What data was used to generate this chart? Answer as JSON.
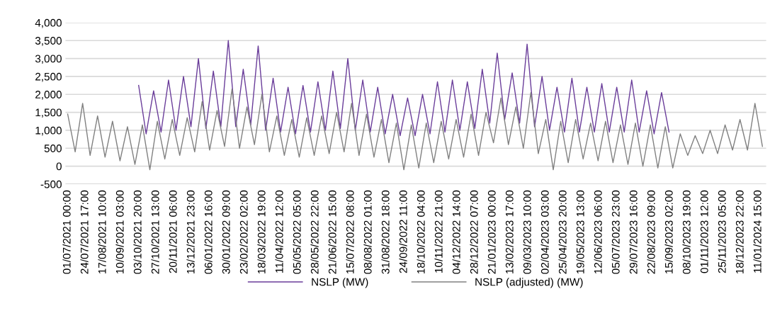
{
  "chart_data": {
    "type": "line",
    "legend": "bottom",
    "grid": "y",
    "marker": "none",
    "line_style": "solid",
    "xlim": [
      "2021-06-28",
      "2024-01-22"
    ],
    "ylim": [
      -500,
      4000
    ],
    "yticks": [
      -500,
      0,
      500,
      {
        "value": 1000,
        "label": "1,000"
      },
      {
        "value": 1500,
        "label": "1,500"
      },
      {
        "value": 2000,
        "label": "2,000"
      },
      {
        "value": 2500,
        "label": "2,500"
      },
      {
        "value": 3000,
        "label": "3,000"
      },
      {
        "value": 3500,
        "label": "3,500"
      },
      {
        "value": 4000,
        "label": "4,000"
      }
    ],
    "xticks": [
      {
        "value": "2021-07-01T00:00",
        "label": "01/07/2021 00:00"
      },
      {
        "value": "2021-07-24T17:00",
        "label": "24/07/2021 17:00"
      },
      {
        "value": "2021-08-17T10:00",
        "label": "17/08/2021 10:00"
      },
      {
        "value": "2021-09-10T03:00",
        "label": "10/09/2021 03:00"
      },
      {
        "value": "2021-10-03T20:00",
        "label": "03/10/2021 20:00"
      },
      {
        "value": "2021-10-27T13:00",
        "label": "27/10/2021 13:00"
      },
      {
        "value": "2021-11-20T06:00",
        "label": "20/11/2021 06:00"
      },
      {
        "value": "2021-12-13T23:00",
        "label": "13/12/2021 23:00"
      },
      {
        "value": "2022-01-06T16:00",
        "label": "06/01/2022 16:00"
      },
      {
        "value": "2022-01-30T09:00",
        "label": "30/01/2022 09:00"
      },
      {
        "value": "2022-02-23T02:00",
        "label": "23/02/2022 02:00"
      },
      {
        "value": "2022-03-18T19:00",
        "label": "18/03/2022 19:00"
      },
      {
        "value": "2022-04-11T12:00",
        "label": "11/04/2022 12:00"
      },
      {
        "value": "2022-05-05T05:00",
        "label": "05/05/2022 05:00"
      },
      {
        "value": "2022-05-28T22:00",
        "label": "28/05/2022 22:00"
      },
      {
        "value": "2022-06-21T15:00",
        "label": "21/06/2022 15:00"
      },
      {
        "value": "2022-07-15T08:00",
        "label": "15/07/2022 08:00"
      },
      {
        "value": "2022-08-08T01:00",
        "label": "08/08/2022 01:00"
      },
      {
        "value": "2022-08-31T18:00",
        "label": "31/08/2022 18:00"
      },
      {
        "value": "2022-09-24T11:00",
        "label": "24/09/2022 11:00"
      },
      {
        "value": "2022-10-18T04:00",
        "label": "18/10/2022 04:00"
      },
      {
        "value": "2022-11-10T21:00",
        "label": "10/11/2022 21:00"
      },
      {
        "value": "2022-12-04T14:00",
        "label": "04/12/2022 14:00"
      },
      {
        "value": "2022-12-28T07:00",
        "label": "28/12/2022 07:00"
      },
      {
        "value": "2023-01-21T00:00",
        "label": "21/01/2023 00:00"
      },
      {
        "value": "2023-02-13T17:00",
        "label": "13/02/2023 17:00"
      },
      {
        "value": "2023-03-09T10:00",
        "label": "09/03/2023 10:00"
      },
      {
        "value": "2023-04-02T03:00",
        "label": "02/04/2023 03:00"
      },
      {
        "value": "2023-04-25T20:00",
        "label": "25/04/2023 20:00"
      },
      {
        "value": "2023-05-19T13:00",
        "label": "19/05/2023 13:00"
      },
      {
        "value": "2023-06-12T06:00",
        "label": "12/06/2023 06:00"
      },
      {
        "value": "2023-07-05T23:00",
        "label": "05/07/2023 23:00"
      },
      {
        "value": "2023-07-29T16:00",
        "label": "29/07/2023 16:00"
      },
      {
        "value": "2023-08-22T09:00",
        "label": "22/08/2023 09:00"
      },
      {
        "value": "2023-09-15T02:00",
        "label": "15/09/2023 02:00"
      },
      {
        "value": "2023-10-08T19:00",
        "label": "08/10/2023 19:00"
      },
      {
        "value": "2023-11-01T12:00",
        "label": "01/11/2023 12:00"
      },
      {
        "value": "2023-11-25T05:00",
        "label": "25/11/2023 05:00"
      },
      {
        "value": "2023-12-18T22:00",
        "label": "18/12/2023 22:00"
      },
      {
        "value": "2024-01-11T15:00",
        "label": "11/01/2024 15:00"
      }
    ],
    "series": [
      {
        "name": "NSLP (MW)",
        "color": "#6a3d9a",
        "x": [
          "2021-10-04",
          "2021-10-14",
          "2021-10-24",
          "2021-11-03",
          "2021-11-13",
          "2021-11-23",
          "2021-12-03",
          "2021-12-13",
          "2021-12-23",
          "2022-01-02",
          "2022-01-12",
          "2022-01-22",
          "2022-02-01",
          "2022-02-11",
          "2022-02-21",
          "2022-03-03",
          "2022-03-13",
          "2022-03-23",
          "2022-04-02",
          "2022-04-12",
          "2022-04-22",
          "2022-05-02",
          "2022-05-12",
          "2022-05-22",
          "2022-06-01",
          "2022-06-11",
          "2022-06-21",
          "2022-07-01",
          "2022-07-11",
          "2022-07-21",
          "2022-07-31",
          "2022-08-10",
          "2022-08-20",
          "2022-08-30",
          "2022-09-09",
          "2022-09-19",
          "2022-09-29",
          "2022-10-09",
          "2022-10-19",
          "2022-10-29",
          "2022-11-08",
          "2022-11-18",
          "2022-11-28",
          "2022-12-08",
          "2022-12-18",
          "2022-12-28",
          "2023-01-07",
          "2023-01-17",
          "2023-01-27",
          "2023-02-06",
          "2023-02-16",
          "2023-02-26",
          "2023-03-08",
          "2023-03-18",
          "2023-03-28",
          "2023-04-07",
          "2023-04-17",
          "2023-04-27",
          "2023-05-07",
          "2023-05-17",
          "2023-05-27",
          "2023-06-06",
          "2023-06-16",
          "2023-06-26",
          "2023-07-06",
          "2023-07-16",
          "2023-07-26",
          "2023-08-05",
          "2023-08-15",
          "2023-08-25",
          "2023-09-04",
          "2023-09-14"
        ],
        "values": [
          2250,
          900,
          2100,
          950,
          2400,
          1000,
          2500,
          1100,
          3000,
          1050,
          2650,
          1100,
          3500,
          1100,
          2700,
          1150,
          3350,
          1000,
          2450,
          950,
          2200,
          900,
          2250,
          950,
          2350,
          1000,
          2650,
          1050,
          3000,
          1000,
          2400,
          950,
          2200,
          900,
          2000,
          850,
          1900,
          850,
          2000,
          900,
          2350,
          950,
          2400,
          1000,
          2350,
          1050,
          2700,
          1200,
          3150,
          1300,
          2600,
          1200,
          3400,
          1100,
          2500,
          1000,
          2200,
          950,
          2450,
          950,
          2200,
          950,
          2300,
          950,
          2200,
          950,
          2400,
          950,
          2100,
          900,
          2050,
          950
        ]
      },
      {
        "name": "NSLP (adjusted) (MW)",
        "color": "#808080",
        "x": [
          "2021-07-01",
          "2021-07-11",
          "2021-07-21",
          "2021-07-31",
          "2021-08-10",
          "2021-08-20",
          "2021-08-30",
          "2021-09-09",
          "2021-09-19",
          "2021-09-29",
          "2021-10-09",
          "2021-10-19",
          "2021-10-29",
          "2021-11-08",
          "2021-11-18",
          "2021-11-28",
          "2021-12-08",
          "2021-12-18",
          "2021-12-28",
          "2022-01-07",
          "2022-01-17",
          "2022-01-27",
          "2022-02-06",
          "2022-02-16",
          "2022-02-26",
          "2022-03-08",
          "2022-03-18",
          "2022-03-28",
          "2022-04-07",
          "2022-04-17",
          "2022-04-27",
          "2022-05-07",
          "2022-05-17",
          "2022-05-27",
          "2022-06-06",
          "2022-06-16",
          "2022-06-26",
          "2022-07-06",
          "2022-07-16",
          "2022-07-26",
          "2022-08-05",
          "2022-08-15",
          "2022-08-25",
          "2022-09-04",
          "2022-09-14",
          "2022-09-24",
          "2022-10-04",
          "2022-10-14",
          "2022-10-24",
          "2022-11-03",
          "2022-11-13",
          "2022-11-23",
          "2022-12-03",
          "2022-12-13",
          "2022-12-23",
          "2023-01-02",
          "2023-01-12",
          "2023-01-22",
          "2023-02-01",
          "2023-02-11",
          "2023-02-21",
          "2023-03-03",
          "2023-03-13",
          "2023-03-23",
          "2023-04-02",
          "2023-04-12",
          "2023-04-22",
          "2023-05-02",
          "2023-05-12",
          "2023-05-22",
          "2023-06-01",
          "2023-06-11",
          "2023-06-21",
          "2023-07-01",
          "2023-07-11",
          "2023-07-21",
          "2023-07-31",
          "2023-08-10",
          "2023-08-20",
          "2023-08-30",
          "2023-09-09",
          "2023-09-19",
          "2023-09-29",
          "2023-10-09",
          "2023-10-19",
          "2023-10-29",
          "2023-11-08",
          "2023-11-18",
          "2023-11-28",
          "2023-12-08",
          "2023-12-18",
          "2023-12-28",
          "2024-01-07",
          "2024-01-17"
        ],
        "values": [
          1450,
          400,
          1750,
          300,
          1400,
          250,
          1250,
          150,
          1100,
          50,
          1150,
          -100,
          1250,
          200,
          1300,
          300,
          1350,
          400,
          1800,
          450,
          1550,
          550,
          2150,
          500,
          1650,
          600,
          2000,
          400,
          1400,
          300,
          1300,
          250,
          1350,
          300,
          1400,
          350,
          1500,
          400,
          1750,
          300,
          1450,
          250,
          1300,
          100,
          1200,
          -100,
          1150,
          -50,
          1200,
          100,
          1250,
          200,
          1300,
          250,
          1450,
          300,
          1500,
          650,
          1900,
          600,
          1650,
          500,
          2050,
          350,
          1300,
          -100,
          1250,
          100,
          1300,
          200,
          1200,
          150,
          1250,
          100,
          1150,
          50,
          1200,
          0,
          1150,
          -50,
          1100,
          -50,
          900,
          300,
          850,
          350,
          1000,
          350,
          1150,
          450,
          1300,
          450,
          1750,
          550
        ]
      }
    ]
  }
}
